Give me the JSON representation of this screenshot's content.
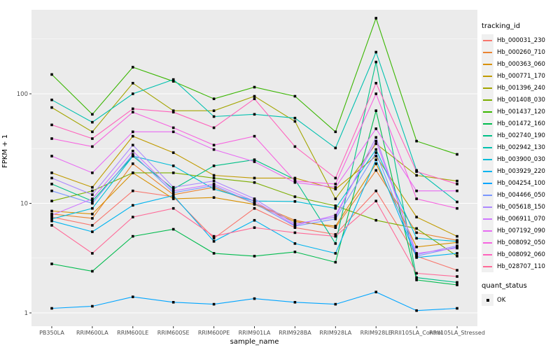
{
  "figure": {
    "background": "#FFFFFF",
    "panel_background": "#EBEBEB",
    "grid_color": "#FFFFFF",
    "tick_text_color": "#4D4D4D",
    "tick_mark_color": "#333333",
    "axis_title_color": "#000000",
    "point_color": "#000000"
  },
  "axes": {
    "x_label": "sample_name",
    "y_label": "FPKM + 1"
  },
  "legend": {
    "tracking_title": "tracking_id",
    "quant_title": "quant_status",
    "quant_item_label": "OK"
  },
  "chart_data": {
    "type": "line",
    "title": "",
    "xlabel": "sample_name",
    "ylabel": "FPKM + 1",
    "y_scale": "log10",
    "y_ticks": [
      1,
      10,
      100
    ],
    "y_tick_labels": [
      "1",
      "10",
      "100"
    ],
    "y_minor_gridlines": [
      3.162,
      31.62,
      316.2
    ],
    "ylim": [
      0.76,
      585
    ],
    "grid": true,
    "legend_position": "right",
    "point_shape": "filled-square",
    "categories": [
      "PB350LA",
      "RRIM600LA",
      "RRIM600LE",
      "RRIM600SE",
      "RRIM600PE",
      "RRIM901LA",
      "RRIM928BA",
      "RRIM928LA",
      "RRIM928LE",
      "RRII105LA_Control",
      "RRII105LA_Stressed"
    ],
    "quant_status": "OK",
    "series": [
      {
        "name": "Hb_000031_230",
        "color": "#F8766D",
        "values": [
          7.5,
          6.3,
          13,
          11.5,
          4.8,
          9,
          6,
          5.2,
          13,
          3.3,
          2.45
        ]
      },
      {
        "name": "Hb_000260_710",
        "color": "#EA8331",
        "values": [
          8,
          7.3,
          23,
          12,
          14,
          10,
          7,
          6,
          20,
          5.4,
          4.6
        ]
      },
      {
        "name": "Hb_000363_060",
        "color": "#D89000",
        "values": [
          8.5,
          8,
          19,
          11,
          11.3,
          9.8,
          6.8,
          6.2,
          23,
          4,
          4.4
        ]
      },
      {
        "name": "Hb_000771_170",
        "color": "#C09B00",
        "values": [
          19,
          14,
          41,
          29,
          18,
          17,
          17,
          13.5,
          27,
          7.5,
          5
        ]
      },
      {
        "name": "Hb_001396_240",
        "color": "#A3A500",
        "values": [
          75,
          45,
          125,
          70,
          70,
          95,
          56,
          11,
          35,
          18,
          16
        ]
      },
      {
        "name": "Hb_001408_030",
        "color": "#7CAE00",
        "values": [
          10.5,
          13,
          19,
          19,
          17,
          15.5,
          11.5,
          9.5,
          7,
          5.9,
          3.3
        ]
      },
      {
        "name": "Hb_001437_120",
        "color": "#39B600",
        "values": [
          150,
          65,
          175,
          130,
          90,
          115,
          95,
          45,
          490,
          37,
          28
        ]
      },
      {
        "name": "Hb_001472_160",
        "color": "#00BB4E",
        "values": [
          2.8,
          2.4,
          5,
          5.8,
          3.5,
          3.3,
          3.6,
          2.9,
          70,
          2,
          1.8
        ]
      },
      {
        "name": "Hb_002740_190",
        "color": "#00C087",
        "values": [
          15,
          10.5,
          27,
          13.5,
          22,
          25,
          16.5,
          4.3,
          195,
          2.1,
          1.9
        ]
      },
      {
        "name": "Hb_002942_130",
        "color": "#00C0AF",
        "values": [
          88,
          55,
          100,
          135,
          62,
          65,
          60,
          32,
          240,
          20,
          10.3
        ]
      },
      {
        "name": "Hb_003900_030",
        "color": "#00BCD8",
        "values": [
          7.2,
          9,
          27,
          22,
          13.5,
          10.5,
          10.4,
          9,
          31,
          4.8,
          4.5
        ]
      },
      {
        "name": "Hb_003929_220",
        "color": "#00B4EF",
        "values": [
          6.9,
          5.5,
          9.6,
          11.8,
          4.5,
          7,
          4.3,
          3.5,
          25,
          3.2,
          3.5
        ]
      },
      {
        "name": "Hb_004254_100",
        "color": "#00A5FF",
        "values": [
          1.1,
          1.15,
          1.4,
          1.25,
          1.2,
          1.35,
          1.25,
          1.2,
          1.55,
          1.05,
          1.1
        ]
      },
      {
        "name": "Hb_004466_050",
        "color": "#7997FF",
        "values": [
          13,
          10,
          28,
          12.5,
          14.5,
          10,
          6.2,
          7.2,
          29,
          3.3,
          4
        ]
      },
      {
        "name": "Hb_005618_150",
        "color": "#AC88FF",
        "values": [
          17,
          12,
          34,
          14,
          16,
          11,
          6.5,
          7.5,
          40,
          3.4,
          4.1
        ]
      },
      {
        "name": "Hb_006911_070",
        "color": "#CF78FF",
        "values": [
          7.8,
          11,
          30,
          13,
          15,
          10.5,
          6.3,
          7.8,
          37,
          3.5,
          3.9
        ]
      },
      {
        "name": "Hb_007192_090",
        "color": "#E76BF3",
        "values": [
          27,
          19,
          45,
          45,
          31,
          24,
          15.5,
          14,
          48,
          13,
          13
        ]
      },
      {
        "name": "Hb_008092_050",
        "color": "#F763E0",
        "values": [
          39,
          33,
          68,
          49,
          34,
          41,
          16,
          15,
          100,
          11,
          9
        ]
      },
      {
        "name": "Hb_008092_060",
        "color": "#FF62BC",
        "values": [
          52,
          39,
          73,
          68,
          49,
          90,
          33,
          17,
          125,
          19.5,
          15
        ]
      },
      {
        "name": "Hb_028707_110",
        "color": "#FF6A98",
        "values": [
          6.3,
          3.5,
          7.5,
          9,
          5,
          6,
          5.4,
          5,
          10.5,
          2.3,
          2.15
        ]
      }
    ]
  }
}
